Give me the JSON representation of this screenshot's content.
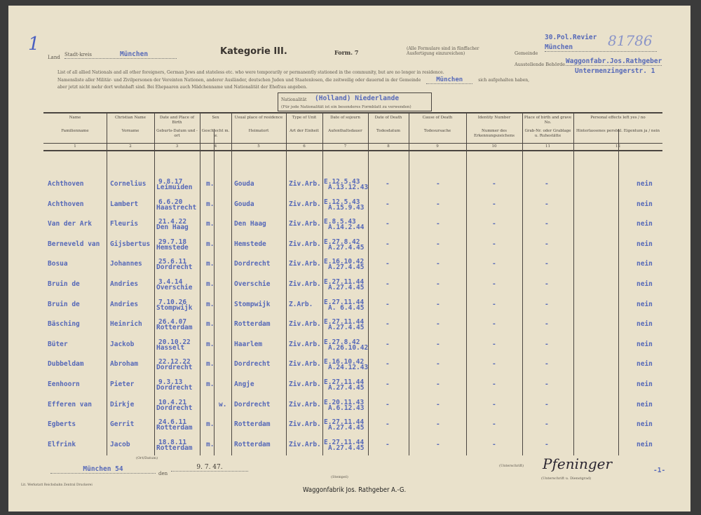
{
  "header": {
    "page_mark": "1",
    "archive_number": "81786",
    "stadtkreis_label": "Stadt-kreis",
    "stadtkreis_prefix": "Land",
    "stadtkreis_value": "München",
    "title": "Kategorie III.",
    "form": "Form. 7",
    "form_note": "(Alle Formulare sind in fünffacher Ausfertigung einzureichen)",
    "gemeinde_label": "Gemeinde",
    "gemeinde_value_1": "30.Pol.Revier",
    "gemeinde_value_2": "München",
    "ausstellende_label": "Ausstellende Behörde",
    "ausstellende_value_1": "Waggonfabr.Jos.Rathgeber",
    "ausstellende_value_2": "Untermenzingerstr. 1",
    "intro_en": "List of all allied Nationals and all other foreigners, German Jews and stateless etc. who were temporarily or permanently stationed in the community, but are no longer in residence.",
    "intro_de_1": "Namensliste aller Militär- und Zivilpersonen der Vereinten Nationen, anderer Ausländer, deutschen Juden und Staatenlosen, die zeitweilig oder dauernd in der Gemeinde",
    "intro_de_city": "München",
    "intro_de_2": "sich aufgehalten haben,",
    "intro_de_3": "aber jetzt nicht mehr dort wohnhaft sind. Bei Ehepaaren auch Mädchenname und Nationalität der Ehefrau angeben.",
    "nationality_label": "Nationalität",
    "nationality_value": "(Holland) Niederlande",
    "nationality_note": "(Für jede Nationalität ist ein besonderes Formblatt zu verwenden)"
  },
  "columns": [
    {
      "en": "Name",
      "de": "Familienname",
      "num": "1"
    },
    {
      "en": "Christian Name",
      "de": "Vorname",
      "num": "2"
    },
    {
      "en": "Date and Place of Birth",
      "de": "Geburts-Datum und -ort",
      "num": "3"
    },
    {
      "en": "Sex",
      "de": "Geschlecht m. w.",
      "num": "4"
    },
    {
      "en": "Usual place of residence",
      "de": "Heimatort",
      "num": "5"
    },
    {
      "en": "Type of Unit",
      "de": "Art der Einheit",
      "num": "6"
    },
    {
      "en": "Date of sojourn",
      "de": "Aufenthaltsdauer",
      "num": "7"
    },
    {
      "en": "Date of Death",
      "de": "Todesdatum",
      "num": "8"
    },
    {
      "en": "Cause of Death",
      "de": "Todesursache",
      "num": "9"
    },
    {
      "en": "Identity Number",
      "de": "Nummer des Erkennungszeichens",
      "num": "10"
    },
    {
      "en": "Place of birth and grave No.",
      "de": "Grab-Nr. oder Grablage u. Ruhestätte",
      "num": "11"
    },
    {
      "en": "Personal effects left yes / no",
      "de": "Hinterlassenes persönl. Eigentum ja / nein",
      "num": "12"
    }
  ],
  "rows": [
    {
      "name": "Achthoven",
      "first": "Cornelius",
      "dob": "9.8.17",
      "pob": "Leimuiden",
      "sex": "m.",
      "residence": "Gouda",
      "unit": "Ziv.Arb.",
      "from": "E.12.5.43",
      "to": "A.13.12.43",
      "death": "-",
      "cause": "-",
      "id": "-",
      "grave": "-",
      "effects": "nein"
    },
    {
      "name": "Achthoven",
      "first": "Lambert",
      "dob": "6.6.20",
      "pob": "Haastrecht",
      "sex": "m.",
      "residence": "Gouda",
      "unit": "Ziv.Arb.",
      "from": "E.12.5.43",
      "to": "A.15.9.43",
      "death": "-",
      "cause": "-",
      "id": "-",
      "grave": "-",
      "effects": "nein"
    },
    {
      "name": "Van der Ark",
      "first": "Fleuris",
      "dob": "21.4.22",
      "pob": "Den Haag",
      "sex": "m.",
      "residence": "Den Haag",
      "unit": "Ziv.Arb.",
      "from": "E.8.5.43",
      "to": "A.14.2.44",
      "death": "-",
      "cause": "-",
      "id": "-",
      "grave": "-",
      "effects": "nein"
    },
    {
      "name": "Berneveld van",
      "first": "Gijsbertus",
      "dob": "29.7.18",
      "pob": "Hemstede",
      "sex": "m.",
      "residence": "Hemstede",
      "unit": "Ziv.Arb.",
      "from": "E.27.8.42",
      "to": "A.27.4.45",
      "death": "-",
      "cause": "-",
      "id": "-",
      "grave": "-",
      "effects": "nein"
    },
    {
      "name": "Bosua",
      "first": "Johannes",
      "dob": "25.6.11",
      "pob": "Dordrecht",
      "sex": "m.",
      "residence": "Dordrecht",
      "unit": "Ziv.Arb.",
      "from": "E.16.10.42",
      "to": "A.27.4.45",
      "death": "-",
      "cause": "-",
      "id": "-",
      "grave": "-",
      "effects": "nein"
    },
    {
      "name": "Bruin de",
      "first": "Andries",
      "dob": "3.4.14",
      "pob": "Overschie",
      "sex": "m.",
      "residence": "Overschie",
      "unit": "Ziv.Arb.",
      "from": "E.27.11.44",
      "to": "A.27.4.45",
      "death": "-",
      "cause": "-",
      "id": "-",
      "grave": "-",
      "effects": "nein"
    },
    {
      "name": "Bruin de",
      "first": "Andries",
      "dob": "7.10.26",
      "pob": "Stompwijk",
      "sex": "m.",
      "residence": "Stompwijk",
      "unit": "Z.Arb.",
      "from": "E.27.11.44",
      "to": "A. 6.4.45",
      "death": "-",
      "cause": "-",
      "id": "-",
      "grave": "-",
      "effects": "nein"
    },
    {
      "name": "Bäsching",
      "first": "Heinrich",
      "dob": "26.4.07",
      "pob": "Rotterdam",
      "sex": "m.",
      "residence": "Rotterdam",
      "unit": "Ziv.Arb.",
      "from": "E.27.11.44",
      "to": "A.27.4.45",
      "death": "-",
      "cause": "-",
      "id": "-",
      "grave": "-",
      "effects": "nein"
    },
    {
      "name": "Büter",
      "first": "Jackob",
      "dob": "20.10.22",
      "pob": "Hasselt",
      "sex": "m.",
      "residence": "Haarlem",
      "unit": "Ziv.Arb.",
      "from": "E.27.8.42",
      "to": "A.26.10.42",
      "death": "-",
      "cause": "-",
      "id": "-",
      "grave": "-",
      "effects": "nein"
    },
    {
      "name": "Dubbeldam",
      "first": "Abroham",
      "dob": "22.12.22",
      "pob": "Dordrecht",
      "sex": "m.",
      "residence": "Dordrecht",
      "unit": "Ziv.Arb.",
      "from": "E.16.10.42",
      "to": "A.24.12.43",
      "death": "-",
      "cause": "-",
      "id": "-",
      "grave": "-",
      "effects": "nein"
    },
    {
      "name": "Eenhoorn",
      "first": "Pieter",
      "dob": "9.3.13",
      "pob": "Dordrecht",
      "sex": "m.",
      "residence": "Angje",
      "unit": "Ziv.Arb.",
      "from": "E.27.11.44",
      "to": "A.27.4.45",
      "death": "-",
      "cause": "-",
      "id": "-",
      "grave": "-",
      "effects": "nein"
    },
    {
      "name": "Efferen van",
      "first": "Dirkje",
      "dob": "10.4.21",
      "pob": "Dordrecht",
      "sex": "w.",
      "residence": "Dordrecht",
      "unit": "Ziv.Arb.",
      "from": "E.20.11.43",
      "to": "A.6.12.43",
      "death": "-",
      "cause": "-",
      "id": "-",
      "grave": "-",
      "effects": "nein"
    },
    {
      "name": "Egberts",
      "first": "Gerrit",
      "dob": "24.6.11",
      "pob": "Rotterdam",
      "sex": "m.",
      "residence": "Rotterdam",
      "unit": "Ziv.Arb.",
      "from": "E.27.11.44",
      "to": "A.27.4.45",
      "death": "-",
      "cause": "-",
      "id": "-",
      "grave": "-",
      "effects": "nein"
    },
    {
      "name": "Elfrink",
      "first": "Jacob",
      "dob": "18.8.11",
      "pob": "Rotterdam",
      "sex": "m.",
      "residence": "Rotterdam",
      "unit": "Ziv.Arb.",
      "from": "E.27.11.44",
      "to": "A.27.4.45",
      "death": "-",
      "cause": "-",
      "id": "-",
      "grave": "-",
      "effects": "nein"
    }
  ],
  "footer": {
    "place_label": "(Ort/Datum)",
    "place_value": "München 54",
    "den": "den",
    "date": "9. 7. 47.",
    "stamp_label": "(Stempel)",
    "stamp_value": "Waggonfabrik Jos. Rathgeber A.-G.",
    "signature_label": "(Unterschrift)",
    "signature": "Pfeninger",
    "sig_caption": "(Unterschrift u. Dienstgrad)",
    "page": "-1-",
    "printer": "Lit. Werkstatt Reichsbahn Zentral Druckerei"
  },
  "colors": {
    "paper": "#e9e1cb",
    "typed_ink": "#5568b8",
    "background": "#3b3b3b"
  }
}
